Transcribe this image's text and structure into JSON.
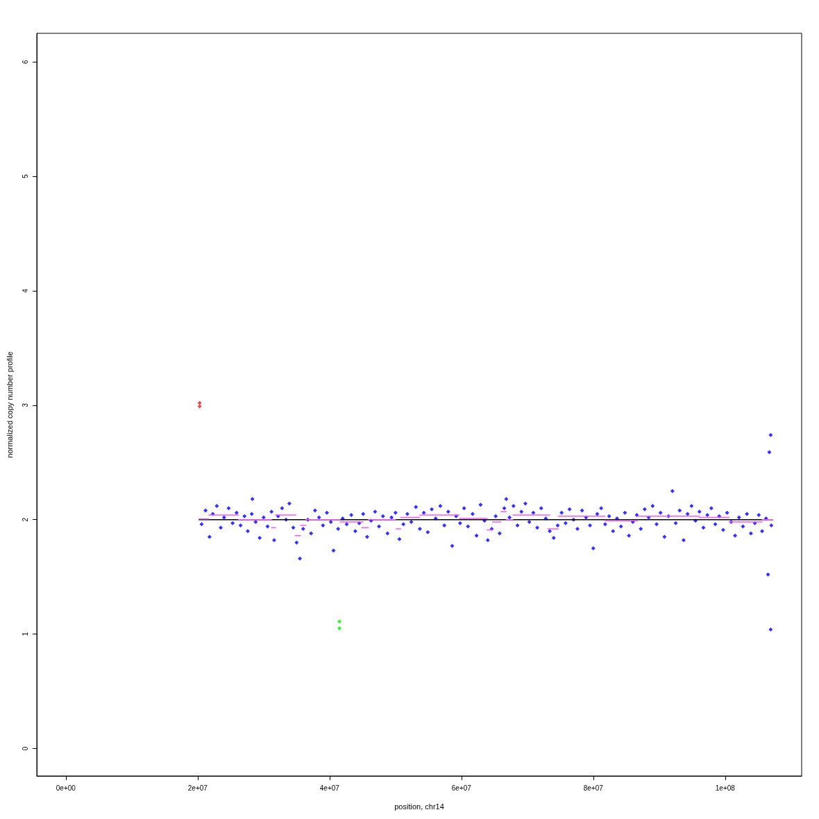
{
  "chart_data": {
    "type": "scatter",
    "xlabel": "position, chr14",
    "ylabel": "normalized copy number profile",
    "xlim": [
      -4400000,
      111600000
    ],
    "ylim": [
      -0.24,
      6.25
    ],
    "xticks": [
      {
        "value": 0,
        "label": "0e+00"
      },
      {
        "value": 20000000,
        "label": "2e+07"
      },
      {
        "value": 40000000,
        "label": "4e+07"
      },
      {
        "value": 60000000,
        "label": "6e+07"
      },
      {
        "value": 80000000,
        "label": "8e+07"
      },
      {
        "value": 100000000,
        "label": "1e+08"
      }
    ],
    "yticks": [
      0,
      1,
      2,
      3,
      4,
      5,
      6
    ],
    "grid": false,
    "marker": "diamond",
    "series": [
      {
        "color": "#0000ff",
        "x": [
          20600000,
          21200000,
          21800000,
          22300000,
          22900000,
          23500000,
          24000000,
          24700000,
          25300000,
          25900000,
          26500000,
          27100000,
          27600000,
          28200000,
          28300000,
          28800000,
          29400000,
          30000000,
          30600000,
          31200000,
          31600000,
          32200000,
          32800000,
          33400000,
          33900000,
          34500000,
          35000000,
          35500000,
          36000000,
          36700000,
          37200000,
          37800000,
          38400000,
          39000000,
          39600000,
          40200000,
          40600000,
          41300000,
          42000000,
          42600000,
          43300000,
          43900000,
          44500000,
          45100000,
          45700000,
          46300000,
          46900000,
          47500000,
          48100000,
          48800000,
          49400000,
          50000000,
          50600000,
          51200000,
          51800000,
          52400000,
          53100000,
          53700000,
          54300000,
          54900000,
          55500000,
          56100000,
          56800000,
          57400000,
          58000000,
          58600000,
          59200000,
          59800000,
          60400000,
          61000000,
          61700000,
          62300000,
          62900000,
          63500000,
          64000000,
          64600000,
          65200000,
          65800000,
          66500000,
          66800000,
          67300000,
          67900000,
          68500000,
          69100000,
          69700000,
          70300000,
          70900000,
          71500000,
          72100000,
          72800000,
          73400000,
          74000000,
          74600000,
          75200000,
          75800000,
          76400000,
          77000000,
          77600000,
          78300000,
          78900000,
          79500000,
          80000000,
          80600000,
          81200000,
          81800000,
          82400000,
          83000000,
          83600000,
          84200000,
          84800000,
          85400000,
          86000000,
          86600000,
          87200000,
          87800000,
          88400000,
          89000000,
          89600000,
          90200000,
          90800000,
          91400000,
          92000000,
          92500000,
          93100000,
          93700000,
          94300000,
          94900000,
          95500000,
          96100000,
          96700000,
          97300000,
          97900000,
          98500000,
          99100000,
          99700000,
          100300000,
          100900000,
          101500000,
          102100000,
          102700000,
          103300000,
          103900000,
          104500000,
          105100000,
          105600000,
          106200000,
          106500000,
          106700000,
          106900000,
          106900000,
          107000000
        ],
        "values": [
          1.96,
          2.08,
          1.85,
          2.05,
          2.12,
          1.93,
          2.02,
          2.1,
          1.97,
          2.06,
          1.95,
          2.03,
          1.9,
          2.05,
          2.18,
          1.98,
          1.84,
          2.02,
          1.94,
          2.07,
          1.82,
          2.03,
          2.1,
          2.0,
          2.14,
          1.93,
          1.8,
          1.66,
          1.92,
          2.0,
          1.88,
          2.08,
          2.02,
          1.95,
          2.06,
          1.98,
          1.73,
          1.92,
          2.01,
          1.96,
          2.04,
          1.9,
          1.97,
          2.05,
          1.85,
          1.99,
          2.07,
          1.94,
          2.03,
          1.88,
          2.02,
          2.06,
          1.83,
          1.96,
          2.05,
          1.98,
          2.11,
          1.92,
          2.06,
          1.89,
          2.09,
          2.01,
          2.12,
          1.95,
          2.07,
          1.77,
          2.03,
          1.97,
          2.1,
          1.94,
          2.05,
          1.86,
          2.13,
          1.99,
          1.82,
          1.92,
          2.03,
          1.88,
          2.1,
          2.18,
          2.02,
          2.12,
          1.95,
          2.07,
          2.14,
          1.98,
          2.06,
          1.93,
          2.1,
          2.01,
          1.9,
          1.84,
          1.95,
          2.06,
          1.97,
          2.09,
          2.0,
          1.92,
          2.08,
          2.02,
          1.95,
          1.75,
          2.05,
          2.1,
          1.96,
          2.03,
          1.9,
          2.01,
          1.94,
          2.06,
          1.86,
          1.98,
          2.04,
          1.92,
          2.09,
          2.02,
          2.12,
          1.96,
          2.06,
          1.85,
          2.03,
          2.25,
          1.97,
          2.08,
          1.82,
          2.05,
          2.12,
          1.99,
          2.07,
          1.93,
          2.04,
          2.1,
          1.96,
          2.03,
          1.91,
          2.06,
          1.98,
          1.86,
          2.02,
          1.94,
          2.05,
          1.88,
          1.97,
          2.04,
          1.9,
          2.01,
          1.52,
          2.59,
          2.74,
          1.04,
          1.95
        ]
      },
      {
        "color": "#dd2222",
        "x": [
          20300000,
          20300000
        ],
        "values": [
          3.02,
          2.99
        ]
      },
      {
        "color": "#00ee00",
        "x": [
          41500000,
          41500000
        ],
        "values": [
          1.11,
          1.05
        ]
      },
      {
        "type": "line",
        "marker": "none",
        "color": "#000000",
        "x": [
          20200000,
          107200000
        ],
        "values": [
          2,
          2
        ]
      },
      {
        "type": "line",
        "marker": "none",
        "color": "#ff55ff",
        "x": [
          20200000,
          21700000,
          null,
          21700000,
          26200000,
          null,
          26200000,
          31200000,
          null,
          31200000,
          31800000,
          null,
          31800000,
          34900000,
          null,
          34800000,
          35600000,
          null,
          35600000,
          36400000,
          null,
          36400000,
          41600000,
          null,
          41600000,
          45100000,
          null,
          44900000,
          45900000,
          null,
          45900000,
          50000000,
          null,
          50100000,
          50800000,
          null,
          50800000,
          53700000,
          null,
          53700000,
          59700000,
          null,
          59700000,
          63900000,
          null,
          63900000,
          64700000,
          null,
          64700000,
          66000000,
          null,
          66000000,
          66800000,
          null,
          66800000,
          67800000,
          null,
          67800000,
          73400000,
          null,
          73100000,
          74700000,
          null,
          74700000,
          80700000,
          null,
          80700000,
          81800000,
          null,
          81800000,
          86700000,
          null,
          86700000,
          96100000,
          null,
          96100000,
          100600000,
          null,
          100600000,
          105600000,
          null,
          105600000,
          107200000
        ],
        "values": [
          2.005,
          2.005,
          null,
          2.04,
          2.04,
          null,
          2.0,
          2.0,
          null,
          1.93,
          1.93,
          null,
          2.04,
          2.04,
          null,
          1.86,
          1.86,
          null,
          1.95,
          1.95,
          null,
          2.0,
          2.0,
          null,
          1.98,
          1.98,
          null,
          1.93,
          1.93,
          null,
          2.0,
          2.0,
          null,
          1.92,
          1.92,
          null,
          2.02,
          2.02,
          null,
          2.04,
          2.04,
          null,
          2.01,
          2.01,
          null,
          1.91,
          1.91,
          null,
          1.98,
          1.98,
          null,
          2.07,
          2.07,
          null,
          2.0,
          2.0,
          null,
          2.04,
          2.04,
          null,
          1.92,
          1.92,
          null,
          2.03,
          2.03,
          null,
          2.03,
          2.03,
          null,
          1.99,
          1.99,
          null,
          2.03,
          2.03,
          null,
          2.02,
          2.02,
          null,
          1.98,
          1.98,
          null,
          2.0,
          2.0
        ]
      }
    ]
  }
}
